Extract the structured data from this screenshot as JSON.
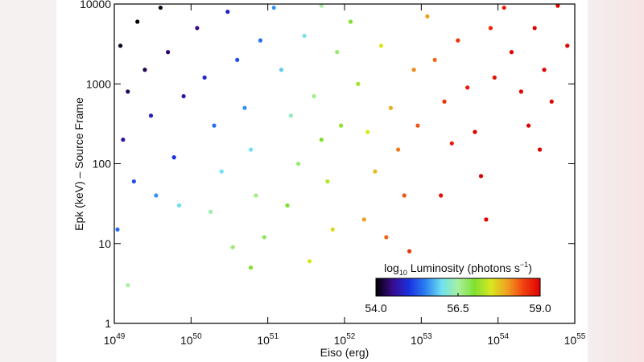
{
  "chart_data": {
    "type": "scatter",
    "x_label": "Eiso (erg)",
    "y_label": "Epk (keV) – Source Frame",
    "x_log": true,
    "y_log": true,
    "xlim": [
      1e+49,
      1e+55
    ],
    "ylim": [
      1,
      10000
    ],
    "xticks": [
      {
        "value": 1e+49,
        "label": "10",
        "exponent": "49"
      },
      {
        "value": 1e+50,
        "label": "10",
        "exponent": "50"
      },
      {
        "value": 1e+51,
        "label": "10",
        "exponent": "51"
      },
      {
        "value": 1e+52,
        "label": "10",
        "exponent": "52"
      },
      {
        "value": 1e+53,
        "label": "10",
        "exponent": "53"
      },
      {
        "value": 1e+54,
        "label": "10",
        "exponent": "54"
      },
      {
        "value": 1e+55,
        "label": "10",
        "exponent": "55"
      }
    ],
    "yticks": [
      1,
      10,
      100,
      1000,
      10000
    ],
    "x": [
      1.2e+49,
      1.5e+49,
      1.3e+49,
      2e+49,
      2.5e+49,
      3e+49,
      1.8e+49,
      4e+49,
      5e+49,
      6e+49,
      3.5e+49,
      1.1e+49,
      8e+49,
      7e+49,
      1.5e+49,
      1.2e+50,
      1.5e+50,
      2e+50,
      2.5e+50,
      1.8e+50,
      3e+50,
      4e+50,
      5e+50,
      6e+50,
      7e+50,
      8e+50,
      9e+50,
      3.5e+50,
      6e+50,
      1.2e+51,
      1.5e+51,
      2e+51,
      2.5e+51,
      1.8e+51,
      3e+51,
      4e+51,
      5e+51,
      6e+51,
      7e+51,
      8e+51,
      9e+51,
      3.5e+51,
      5e+51,
      1.2e+52,
      1.5e+52,
      2e+52,
      2.5e+52,
      1.8e+52,
      3e+52,
      4e+52,
      5e+52,
      6e+52,
      7e+52,
      8e+52,
      9e+52,
      3.5e+52,
      1.2e+53,
      1.5e+53,
      2e+53,
      2.5e+53,
      1.8e+53,
      3e+53,
      4e+53,
      5e+53,
      6e+53,
      7e+53,
      8e+53,
      9e+53,
      1.2e+54,
      1.5e+54,
      2e+54,
      2.5e+54,
      3e+54,
      4e+54,
      5e+54,
      6e+54,
      8e+54,
      3.5e+54
    ],
    "y": [
      3000,
      800,
      200,
      6000,
      1500,
      400,
      60,
      9000,
      2500,
      120,
      40,
      15,
      700,
      30,
      3,
      5000,
      1200,
      300,
      80,
      25,
      8000,
      2000,
      500,
      150,
      40,
      3500,
      12,
      9,
      5,
      9000,
      1500,
      400,
      100,
      30,
      4000,
      700,
      200,
      60,
      15,
      2500,
      300,
      6,
      9500,
      6000,
      1000,
      250,
      80,
      20,
      3000,
      500,
      150,
      40,
      8,
      1500,
      300,
      12,
      7000,
      2000,
      600,
      180,
      40,
      3500,
      900,
      250,
      70,
      20,
      5000,
      1200,
      9000,
      2500,
      800,
      300,
      5000,
      1500,
      600,
      9500,
      3000,
      150
    ],
    "luminosity": [
      54.1,
      54.3,
      54.6,
      54.0,
      54.3,
      54.8,
      55.2,
      54.1,
      54.4,
      55.0,
      55.6,
      55.4,
      54.7,
      56.0,
      56.5,
      54.5,
      54.9,
      55.4,
      56.0,
      56.4,
      54.8,
      55.2,
      55.6,
      56.0,
      56.6,
      55.4,
      56.8,
      56.7,
      57.0,
      55.6,
      55.9,
      56.3,
      56.7,
      57.0,
      56.1,
      56.6,
      57.0,
      57.3,
      57.6,
      56.7,
      57.1,
      57.5,
      56.5,
      57.0,
      57.2,
      57.5,
      57.8,
      58.0,
      57.5,
      57.9,
      58.2,
      58.4,
      58.6,
      58.1,
      58.4,
      58.3,
      58.0,
      58.3,
      58.6,
      58.8,
      58.9,
      58.6,
      58.8,
      59.0,
      59.0,
      59.0,
      58.7,
      58.9,
      58.8,
      59.0,
      59.0,
      59.0,
      59.0,
      59.0,
      59.0,
      59.0,
      59.0,
      59.0
    ],
    "colorbar": {
      "label": {
        "base": "log",
        "sub": "10",
        "text": " Luminosity (photons s",
        "sup": "−1",
        "end": ")"
      },
      "clim": [
        54,
        59
      ],
      "ticks": [
        {
          "value": 54,
          "label": "54.0"
        },
        {
          "value": 56.5,
          "label": "56.5"
        },
        {
          "value": 59,
          "label": "59.0"
        }
      ],
      "colormap": [
        "#000000",
        "#3a0a8c",
        "#1a30e0",
        "#2a7ff0",
        "#6ee0f0",
        "#a8f0a0",
        "#7fe030",
        "#d8e820",
        "#f0a020",
        "#f04010",
        "#e00000"
      ]
    }
  }
}
